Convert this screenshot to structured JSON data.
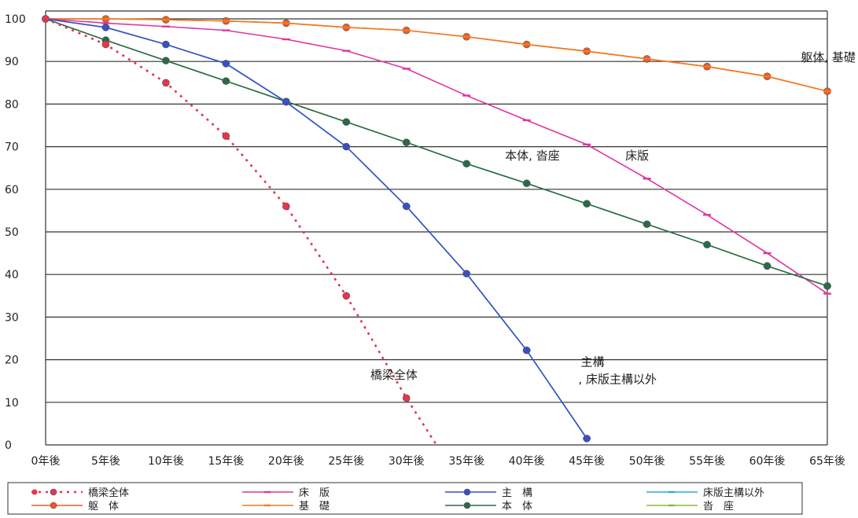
{
  "chart_data": {
    "type": "line",
    "categories": [
      "0年後",
      "5年後",
      "10年後",
      "15年後",
      "20年後",
      "25年後",
      "30年後",
      "35年後",
      "40年後",
      "45年後",
      "50年後",
      "55年後",
      "60年後",
      "65年後"
    ],
    "x": [
      0,
      5,
      10,
      15,
      20,
      25,
      30,
      35,
      40,
      45,
      50,
      55,
      60,
      65
    ],
    "ylim": [
      0,
      100
    ],
    "yticks": [
      0,
      10,
      20,
      30,
      40,
      50,
      60,
      70,
      80,
      90,
      100
    ],
    "grid": true,
    "legend_placement": "bottom",
    "series": [
      {
        "name": "橋梁全体",
        "color": "#e8344e",
        "dashed": true,
        "marker": "circle",
        "x": [
          0,
          5,
          10,
          15,
          20,
          25,
          30,
          32.5
        ],
        "values": [
          100,
          94,
          85,
          72.5,
          56,
          35,
          11,
          0
        ]
      },
      {
        "name": "躯　体",
        "color": "#ea5a2a",
        "marker": "circle",
        "x": [
          0,
          5,
          10,
          15,
          20,
          25,
          30,
          35,
          40,
          45,
          50,
          55,
          60,
          65
        ],
        "values": [
          100,
          100,
          99.8,
          99.5,
          99,
          98,
          97.3,
          95.8,
          94,
          92.4,
          90.6,
          88.8,
          86.5,
          83
        ]
      },
      {
        "name": "床　版",
        "color": "#e0359e",
        "marker": "dash",
        "x": [
          0,
          5,
          10,
          15,
          20,
          25,
          30,
          35,
          40,
          45,
          50,
          55,
          60,
          65
        ],
        "values": [
          100,
          99,
          98.2,
          97.3,
          95.2,
          92.5,
          88.3,
          82,
          76.2,
          70.5,
          62.5,
          54,
          45,
          35.5
        ]
      },
      {
        "name": "基　礎",
        "color": "#f47a20",
        "marker": "dash",
        "x": [
          0,
          5,
          10,
          15,
          20,
          25,
          30,
          35,
          40,
          45,
          50,
          55,
          60,
          65
        ],
        "values": [
          100,
          100,
          99.8,
          99.5,
          99,
          98,
          97.3,
          95.8,
          94,
          92.4,
          90.6,
          88.8,
          86.5,
          83
        ]
      },
      {
        "name": "主　構",
        "color": "#3a4fc4",
        "marker": "circle",
        "x": [
          0,
          5,
          10,
          15,
          20,
          25,
          30,
          35,
          40,
          45
        ],
        "values": [
          100,
          98,
          94,
          89.5,
          80.5,
          70,
          56,
          40.2,
          22.2,
          1.5
        ]
      },
      {
        "name": "本　体",
        "color": "#2a6a4a",
        "marker": "circle",
        "x": [
          0,
          5,
          10,
          15,
          20,
          25,
          30,
          35,
          40,
          45,
          50,
          55,
          60,
          65
        ],
        "values": [
          100,
          95,
          90.2,
          85.4,
          80.6,
          75.8,
          71,
          66,
          61.4,
          56.6,
          51.8,
          47,
          42,
          37.3
        ]
      },
      {
        "name": "床版主構以外",
        "color": "#2aa8e0",
        "marker": "dash",
        "x": [
          0,
          5,
          10,
          15,
          20,
          25,
          30,
          35,
          40,
          45
        ],
        "values": [
          100,
          98,
          94,
          89.5,
          80.5,
          70,
          56,
          40.2,
          22.2,
          1.5
        ]
      },
      {
        "name": "沓　座",
        "color": "#8ab83a",
        "marker": "dash",
        "x": [
          0,
          5,
          10,
          15,
          20,
          25,
          30,
          35,
          40,
          45,
          50,
          55,
          60,
          65
        ],
        "values": [
          100,
          95,
          90.2,
          85.4,
          80.6,
          75.8,
          71,
          66,
          61.4,
          56.6,
          51.8,
          47,
          42,
          37.3
        ]
      }
    ],
    "annotations": [
      {
        "text": "躯体, 基礎",
        "x": 62.8,
        "y": 90
      },
      {
        "text": "本体, 沓座",
        "x": 38.2,
        "y": 67
      },
      {
        "text": "床版",
        "x": 48.2,
        "y": 67
      },
      {
        "text": "橋梁全体",
        "x": 27,
        "y": 15.5
      },
      {
        "text": "主構",
        "x": 44.5,
        "y": 18.5
      },
      {
        "text": ", 床版主構以外",
        "x": 44.3,
        "y": 14.5
      }
    ]
  }
}
